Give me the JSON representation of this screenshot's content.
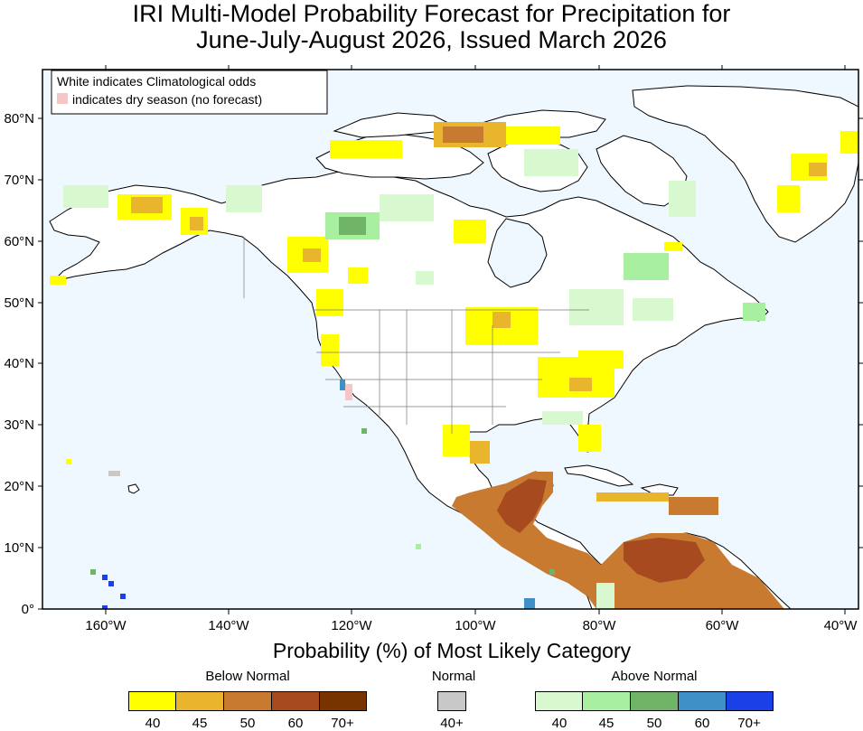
{
  "title": {
    "line1": "IRI Multi-Model Probability Forecast for Precipitation for",
    "line2": "June-July-August 2026, Issued March 2026"
  },
  "map": {
    "legend_box": {
      "line1": "White indicates Climatological odds",
      "line2": "indicates dry season (no forecast)"
    },
    "lat_labels": [
      "80°N",
      "70°N",
      "60°N",
      "50°N",
      "40°N",
      "30°N",
      "20°N",
      "10°N",
      "0°"
    ],
    "lon_labels": [
      "160°W",
      "140°W",
      "120°W",
      "100°W",
      "80°W",
      "60°W",
      "40°W"
    ],
    "colors": {
      "ocean": "#f0f8ff",
      "land": "#ffffff",
      "dry_season": "#f5c6c6"
    }
  },
  "colorbar": {
    "title": "Probability (%) of Most Likely Category",
    "below": {
      "label": "Below Normal",
      "colors": [
        "#ffff00",
        "#e8b52c",
        "#c87a30",
        "#a84a1f",
        "#773300"
      ],
      "ticks": [
        "40",
        "45",
        "50",
        "60",
        "70+"
      ]
    },
    "normal": {
      "label": "Normal",
      "colors": [
        "#c8c8c8"
      ],
      "ticks": [
        "40+"
      ]
    },
    "above": {
      "label": "Above Normal",
      "colors": [
        "#d8f8d0",
        "#a8f0a0",
        "#70b468",
        "#4090c8",
        "#1a40e8"
      ],
      "ticks": [
        "40",
        "45",
        "50",
        "60",
        "70+"
      ]
    }
  }
}
